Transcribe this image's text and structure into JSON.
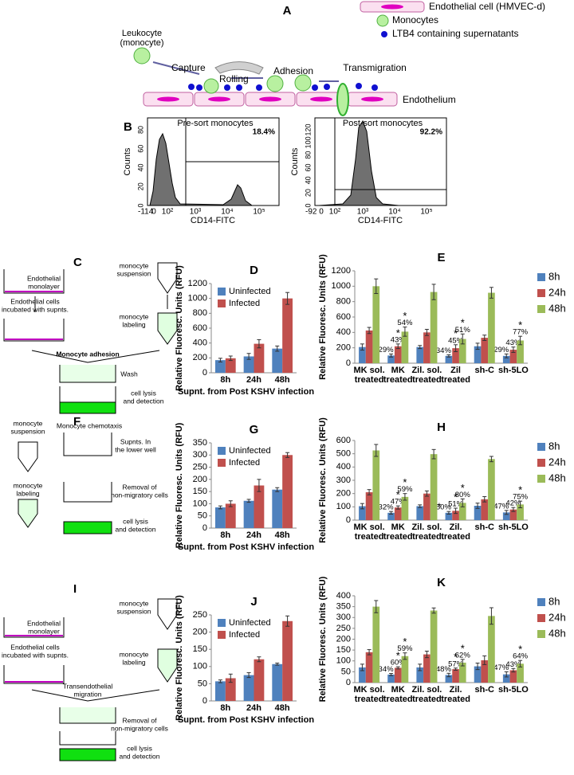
{
  "panel_a": {
    "label": "A",
    "legend": [
      "Endothelial cell (HMVEC-d)",
      "Monocytes",
      "LTB4 containing supernatants"
    ],
    "leukocyte": [
      "Leukocyte",
      "(monocyte)"
    ],
    "steps": [
      "Capture",
      "Rolling",
      "Adhesion",
      "Transmigration"
    ],
    "endothelium": "Endothelium"
  },
  "panel_b": {
    "label": "B",
    "plots": [
      {
        "title": "Pre-sort  monocytes",
        "percent": "18.4%",
        "y_label": "Counts",
        "x_label": "CD14-FITC",
        "yticks": [
          "0",
          "20",
          "40",
          "60",
          "80"
        ],
        "xticks": [
          "-114",
          "0",
          "10²",
          "10³",
          "10⁴",
          "10⁵"
        ]
      },
      {
        "title": "Post-sort monocytes",
        "percent": "92.2%",
        "y_label": "Counts",
        "x_label": "CD14-FITC",
        "yticks": [
          "0",
          "20",
          "40",
          "60",
          "80",
          "100",
          "120"
        ],
        "xticks": [
          "-92",
          "0",
          "10²",
          "10³",
          "10⁴",
          "10⁵"
        ]
      }
    ]
  },
  "panel_c": {
    "label": "C",
    "steps": [
      [
        "Endothelial",
        "monolayer"
      ],
      [
        "monocyte",
        "suspension"
      ],
      [
        "Endothelial cells",
        "incubated with supnts."
      ],
      [
        "monocyte",
        "labeling"
      ],
      [
        "Monocyte adhesion"
      ],
      [
        "Wash"
      ],
      [
        "cell lysis",
        "and detection"
      ]
    ]
  },
  "panel_f": {
    "label": "F",
    "steps": [
      [
        "monocyte",
        "suspension"
      ],
      [
        "Monocyte chemotaxis"
      ],
      [
        "Supnts. In",
        "the lower well"
      ],
      [
        "monocyte",
        "labeling"
      ],
      [
        "Removal of",
        "non-migratory cells"
      ],
      [
        "cell lysis",
        "and detection"
      ]
    ]
  },
  "panel_i": {
    "label": "I",
    "steps": [
      [
        "Endothelial",
        "monolayer"
      ],
      [
        "monocyte",
        "suspension"
      ],
      [
        "Endothelial cells",
        "incubated with supnts."
      ],
      [
        "monocyte",
        "labeling"
      ],
      [
        "Transendothelial",
        "migration"
      ],
      [
        "Removal of",
        "non-migratory cells"
      ],
      [
        "cell lysis",
        "and detection"
      ]
    ]
  },
  "chart_data": [
    {
      "type": "bar",
      "title": "D",
      "y_label": "Relative Fluoresc. Units (RFU)",
      "x_label": "Supnt. from Post KSHV infection",
      "categories": [
        "8h",
        "24h",
        "48h"
      ],
      "ylim": [
        0,
        1200
      ],
      "yticks": [
        0,
        200,
        400,
        600,
        800,
        1000,
        1200
      ],
      "legend": "upper left",
      "series": [
        {
          "name": "Uninfected",
          "color": "#4f81bd",
          "values": [
            170,
            220,
            325
          ],
          "errors": [
            25,
            40,
            35
          ]
        },
        {
          "name": "Infected",
          "color": "#c0504d",
          "values": [
            195,
            390,
            1000
          ],
          "errors": [
            30,
            55,
            80
          ]
        }
      ]
    },
    {
      "type": "bar",
      "title": "E",
      "y_label": "Relative Fluoresc. Units (RFU)",
      "categories": [
        "MK sol. treated",
        "MK treated",
        "Zil. sol. treated",
        "Zil treated",
        "sh-C",
        "sh-5LO"
      ],
      "ylim": [
        0,
        1200
      ],
      "yticks": [
        0,
        200,
        400,
        600,
        800,
        1000,
        1200
      ],
      "legend": "right",
      "series": [
        {
          "name": "8h",
          "color": "#4f81bd",
          "values": [
            210,
            100,
            210,
            95,
            220,
            95
          ],
          "errors": [
            40,
            20,
            20,
            15,
            40,
            25
          ],
          "annotations": [
            null,
            "29%",
            null,
            "34%",
            null,
            "29%"
          ],
          "significance": [
            null,
            null,
            null,
            null,
            null,
            null
          ]
        },
        {
          "name": "24h",
          "color": "#c0504d",
          "values": [
            425,
            220,
            400,
            195,
            330,
            175
          ],
          "errors": [
            40,
            30,
            40,
            45,
            35,
            35
          ],
          "annotations": [
            null,
            "43%",
            null,
            "45%",
            null,
            "43%"
          ],
          "significance": [
            null,
            "*",
            null,
            "*",
            null,
            null
          ]
        },
        {
          "name": "48h",
          "color": "#9bbb59",
          "values": [
            1000,
            410,
            925,
            315,
            915,
            295
          ],
          "errors": [
            95,
            60,
            100,
            65,
            70,
            55
          ],
          "annotations": [
            null,
            "54%",
            null,
            "51%",
            null,
            "77%"
          ],
          "significance": [
            null,
            "*",
            null,
            "*",
            null,
            "*"
          ]
        }
      ]
    },
    {
      "type": "bar",
      "title": "G",
      "y_label": "Relative Fluoresc. Units (RFU)",
      "x_label": "Supnt. from Post KSHV infection",
      "categories": [
        "8h",
        "24h",
        "48h"
      ],
      "ylim": [
        0,
        350
      ],
      "yticks": [
        0,
        50,
        100,
        150,
        200,
        250,
        300,
        350
      ],
      "legend": "upper left",
      "series": [
        {
          "name": "Uninfected",
          "color": "#4f81bd",
          "values": [
            85,
            112,
            158
          ],
          "errors": [
            6,
            6,
            8
          ]
        },
        {
          "name": "Infected",
          "color": "#c0504d",
          "values": [
            100,
            175,
            300
          ],
          "errors": [
            12,
            25,
            10
          ]
        }
      ]
    },
    {
      "type": "bar",
      "title": "H",
      "y_label": "Relative Fluoresc. Units (RFU)",
      "categories": [
        "MK sol. treated",
        "MK treated",
        "Zil. sol. treated",
        "Zil. treated",
        "sh-C",
        "sh-5LO"
      ],
      "ylim": [
        0,
        600
      ],
      "yticks": [
        0,
        100,
        200,
        300,
        400,
        500,
        600
      ],
      "legend": "right",
      "series": [
        {
          "name": "8h",
          "color": "#4f81bd",
          "values": [
            105,
            55,
            105,
            55,
            108,
            58
          ],
          "errors": [
            20,
            10,
            10,
            10,
            20,
            15
          ],
          "annotations": [
            null,
            "32%",
            null,
            "50%",
            null,
            "47%"
          ],
          "significance": [
            null,
            null,
            null,
            "*",
            null,
            null
          ]
        },
        {
          "name": "24h",
          "color": "#c0504d",
          "values": [
            210,
            95,
            200,
            70,
            157,
            80
          ],
          "errors": [
            20,
            12,
            20,
            20,
            20,
            15
          ],
          "annotations": [
            null,
            "47%",
            null,
            "51%",
            null,
            "42%"
          ],
          "significance": [
            null,
            "*",
            null,
            "*",
            null,
            null
          ]
        },
        {
          "name": "48h",
          "color": "#9bbb59",
          "values": [
            525,
            175,
            497,
            130,
            460,
            118
          ],
          "errors": [
            45,
            25,
            35,
            30,
            20,
            25
          ],
          "annotations": [
            null,
            "59%",
            null,
            "80%",
            null,
            "75%"
          ],
          "significance": [
            null,
            "*",
            null,
            "*",
            null,
            "*"
          ]
        }
      ]
    },
    {
      "type": "bar",
      "title": "J",
      "y_label": "Relative Fluoresc. Units (RFU)",
      "x_label": "Supnt. from Post KSHV infection",
      "categories": [
        "8h",
        "24h",
        "48h"
      ],
      "ylim": [
        0,
        250
      ],
      "yticks": [
        0,
        50,
        100,
        150,
        200,
        250
      ],
      "legend": "upper left",
      "series": [
        {
          "name": "Uninfected",
          "color": "#4f81bd",
          "values": [
            57,
            75,
            107
          ],
          "errors": [
            4,
            7,
            3
          ]
        },
        {
          "name": "Infected",
          "color": "#c0504d",
          "values": [
            66,
            121,
            232
          ],
          "errors": [
            12,
            7,
            15
          ]
        }
      ]
    },
    {
      "type": "bar",
      "title": "K",
      "y_label": "Relative Fluoresc. Units (RFU)",
      "categories": [
        "MK sol. treated",
        "MK treated",
        "Zil. sol. treated",
        "Zil. treated",
        "sh-C",
        "sh-5LO"
      ],
      "ylim": [
        0,
        400
      ],
      "yticks": [
        0,
        50,
        100,
        150,
        200,
        250,
        300,
        350,
        400
      ],
      "legend": "right",
      "series": [
        {
          "name": "8h",
          "color": "#4f81bd",
          "values": [
            70,
            37,
            70,
            35,
            75,
            38
          ],
          "errors": [
            15,
            5,
            15,
            8,
            15,
            12
          ],
          "annotations": [
            null,
            "34%",
            null,
            "48%",
            null,
            "47%"
          ],
          "significance": [
            null,
            null,
            null,
            null,
            null,
            null
          ]
        },
        {
          "name": "24h",
          "color": "#c0504d",
          "values": [
            140,
            68,
            130,
            62,
            103,
            57
          ],
          "errors": [
            12,
            5,
            15,
            5,
            20,
            8
          ],
          "annotations": [
            null,
            "60%",
            null,
            "57%",
            null,
            "43%"
          ],
          "significance": [
            null,
            "*",
            null,
            "*",
            null,
            null
          ]
        },
        {
          "name": "48h",
          "color": "#9bbb59",
          "values": [
            350,
            122,
            332,
            92,
            307,
            87
          ],
          "errors": [
            28,
            15,
            12,
            15,
            38,
            15
          ],
          "annotations": [
            null,
            "59%",
            null,
            "62%",
            null,
            "64%"
          ],
          "significance": [
            null,
            "*",
            null,
            "*",
            null,
            "*"
          ]
        }
      ]
    }
  ]
}
